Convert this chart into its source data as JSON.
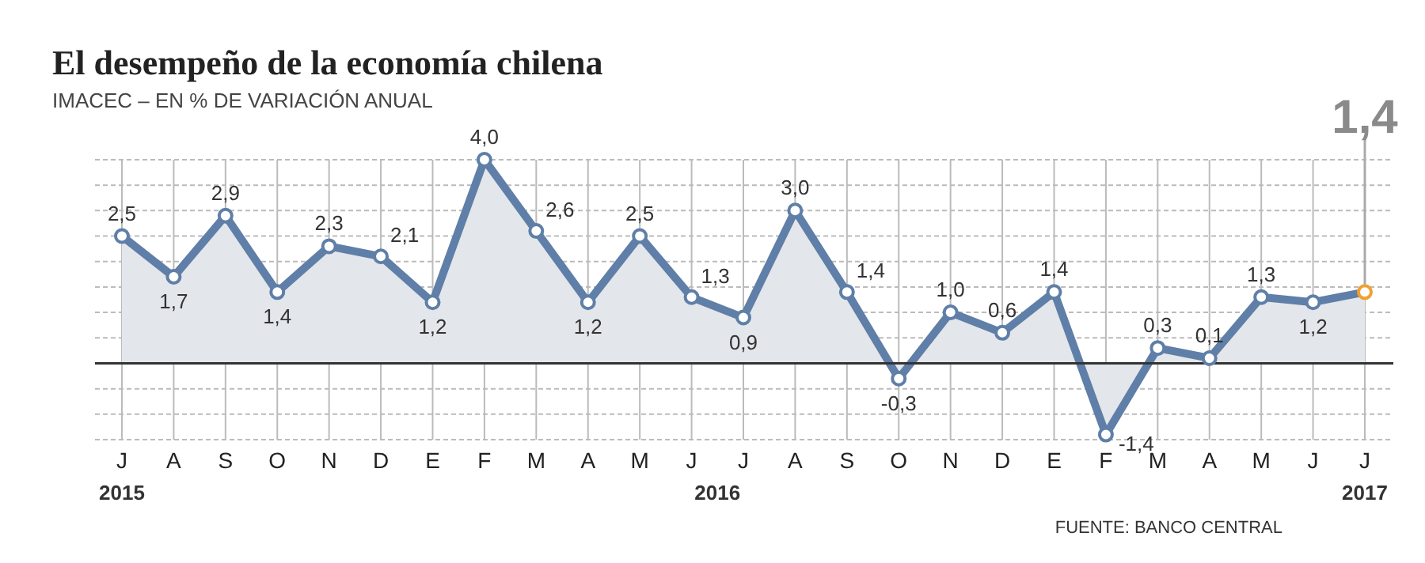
{
  "chart_data": {
    "type": "area",
    "title": "El desempeño de la economía chilena",
    "subtitle": "IMACEC – EN % DE VARIACIÓN ANUAL",
    "categories": [
      "J",
      "A",
      "S",
      "O",
      "N",
      "D",
      "E",
      "F",
      "M",
      "A",
      "M",
      "J",
      "J",
      "A",
      "S",
      "O",
      "N",
      "D",
      "E",
      "F",
      "M",
      "A",
      "M",
      "J",
      "J"
    ],
    "series": [
      {
        "color": "#5f7fa8",
        "values": [
          2.5,
          1.7,
          2.9,
          1.4,
          2.3,
          2.1,
          1.2,
          4.0,
          2.6,
          1.2,
          2.5,
          1.3,
          0.9,
          3.0,
          1.4,
          -0.3,
          1.0,
          0.6,
          1.4,
          -1.4,
          0.3,
          0.1,
          1.3,
          1.2,
          1.4
        ],
        "value_labels": [
          "2,5",
          "1,7",
          "2,9",
          "1,4",
          "2,3",
          "2,1",
          "1,2",
          "4,0",
          "2,6",
          "1,2",
          "2,5",
          "1,3",
          "0,9",
          "3,0",
          "1,4",
          "-0,3",
          "1,0",
          "0,6",
          "1,4",
          "-1,4",
          "0,3",
          "0,1",
          "1,3",
          "1,2",
          "1,4"
        ],
        "colors": [
          "#5f7fa8",
          "#5f7fa8",
          "#5f7fa8",
          "#5f7fa8",
          "#5f7fa8",
          "#5f7fa8",
          "#5f7fa8",
          "#5f7fa8",
          "#5f7fa8",
          "#5f7fa8",
          "#5f7fa8",
          "#5f7fa8",
          "#5f7fa8",
          "#5f7fa8",
          "#5f7fa8",
          "#5f7fa8",
          "#5f7fa8",
          "#5f7fa8",
          "#5f7fa8",
          "#5f7fa8",
          "#5f7fa8",
          "#5f7fa8",
          "#5f7fa8",
          "#5f7fa8",
          "#f0a030"
        ]
      }
    ],
    "ylim": [
      -1.5,
      4.0
    ],
    "yticks": [
      {
        "value": -1.5,
        "label": null
      },
      {
        "value": -1,
        "label": null
      },
      {
        "value": -0.5,
        "label": null
      },
      {
        "value": 0,
        "label": null
      },
      {
        "value": 0.5,
        "label": null
      },
      {
        "value": 1,
        "label": null
      },
      {
        "value": 1.5,
        "label": null
      },
      {
        "value": 2,
        "label": null
      },
      {
        "value": 2.5,
        "label": null
      },
      {
        "value": 3,
        "label": null
      },
      {
        "value": 3.5,
        "label": null
      },
      {
        "value": 4,
        "label": null
      }
    ],
    "grid": true,
    "marker": "circle",
    "annotations": [
      "2015",
      "2016",
      "2017",
      "FUENTE: BANCO CENTRAL"
    ]
  }
}
